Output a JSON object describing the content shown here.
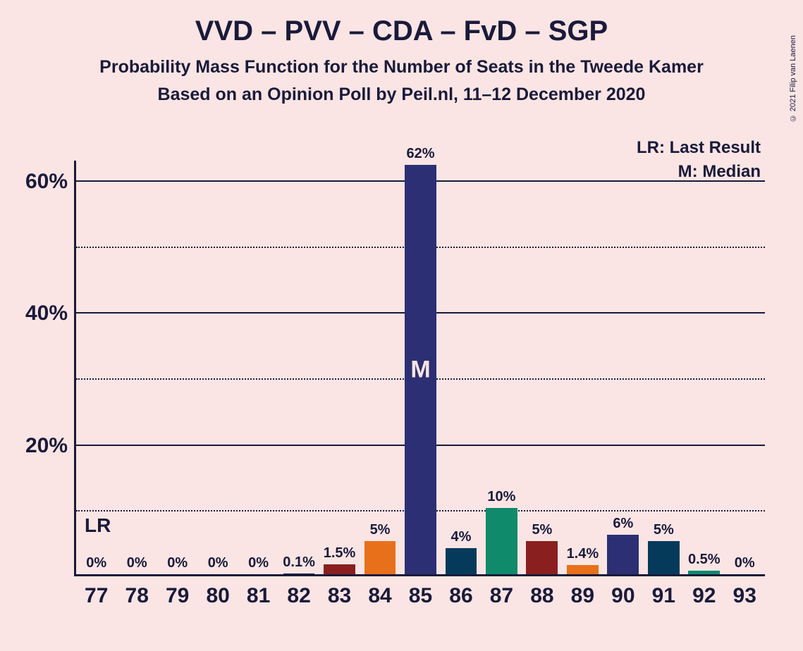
{
  "copyright": "© 2021 Filip van Laenen",
  "titles": {
    "main": "VVD – PVV – CDA – FvD – SGP",
    "sub1": "Probability Mass Function for the Number of Seats in the Tweede Kamer",
    "sub2": "Based on an Opinion Poll by Peil.nl, 11–12 December 2020"
  },
  "chart": {
    "type": "bar",
    "background_color": "#fae5e4",
    "axis_color": "#1a1a3a",
    "text_color": "#1a1a3a",
    "title_fontsize": 40,
    "subtitle_fontsize": 25,
    "axis_label_fontsize": 30,
    "value_label_fontsize": 20,
    "y": {
      "min": 0,
      "max": 63,
      "ticks": [
        {
          "value": 10,
          "label": "",
          "style": "dotted"
        },
        {
          "value": 20,
          "label": "20%",
          "style": "solid"
        },
        {
          "value": 30,
          "label": "",
          "style": "dotted"
        },
        {
          "value": 40,
          "label": "40%",
          "style": "solid"
        },
        {
          "value": 50,
          "label": "",
          "style": "dotted"
        },
        {
          "value": 60,
          "label": "60%",
          "style": "solid"
        }
      ]
    },
    "categories": [
      "77",
      "78",
      "79",
      "80",
      "81",
      "82",
      "83",
      "84",
      "85",
      "86",
      "87",
      "88",
      "89",
      "90",
      "91",
      "92",
      "93"
    ],
    "values": [
      0,
      0,
      0,
      0,
      0,
      0.1,
      1.5,
      5,
      62,
      4,
      10,
      5,
      1.4,
      6,
      5,
      0.5,
      0
    ],
    "value_labels": [
      "0%",
      "0%",
      "0%",
      "0%",
      "0%",
      "0.1%",
      "1.5%",
      "5%",
      "62%",
      "4%",
      "10%",
      "5%",
      "1.4%",
      "6%",
      "5%",
      "0.5%",
      "0%"
    ],
    "bar_colors": [
      "#1a1a3a",
      "#1a1a3a",
      "#1a1a3a",
      "#1a1a3a",
      "#1a1a3a",
      "#1a1a3a",
      "#8a1f1f",
      "#e8701a",
      "#2c2f73",
      "#063a5b",
      "#0f8a6a",
      "#8a1f1f",
      "#e8701a",
      "#2c2f73",
      "#063a5b",
      "#0f8a6a",
      "#1a1a3a"
    ],
    "median_index": 8,
    "median_marker": "M",
    "bar_width_ratio": 0.78
  },
  "annotations": {
    "lr": "LR",
    "legend_lr": "LR: Last Result",
    "legend_m": "M: Median"
  }
}
